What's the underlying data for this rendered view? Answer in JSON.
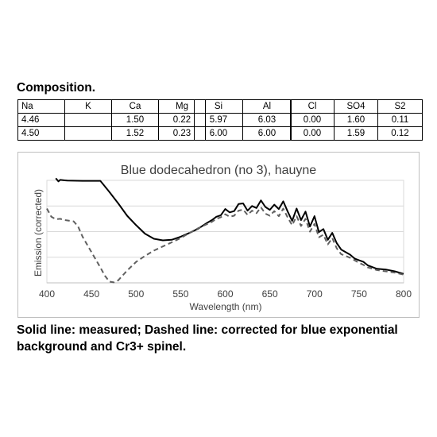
{
  "composition": {
    "heading": "Composition.",
    "groups": [
      {
        "headers": [
          "Na",
          "K",
          "Ca",
          "Mg"
        ],
        "rows": [
          [
            "4.46",
            "",
            "1.50",
            "0.22"
          ],
          [
            "4.50",
            "",
            "1.52",
            "0.23"
          ]
        ]
      },
      {
        "headers": [
          "Si",
          "Al"
        ],
        "rows": [
          [
            "5.97",
            "6.03"
          ],
          [
            "6.00",
            "6.00"
          ]
        ]
      },
      {
        "headers": [
          "Cl",
          "SO4",
          "S2"
        ],
        "rows": [
          [
            "0.00",
            "1.60",
            "0.11"
          ],
          [
            "0.00",
            "1.59",
            "0.12"
          ]
        ]
      }
    ]
  },
  "chart_data": {
    "type": "line",
    "title": "Blue dodecahedron (no 3), hauyne",
    "xlabel": "Wavelength (nm)",
    "ylabel": "Emission (corrected)",
    "xlim": [
      400,
      800
    ],
    "ylim": [
      0,
      4
    ],
    "xticks": [
      400,
      450,
      500,
      550,
      600,
      650,
      700,
      750,
      800
    ],
    "yticks": [
      0,
      1,
      2,
      3,
      4
    ],
    "grid": "horizontal",
    "y_tick_labels_shown": false,
    "series": [
      {
        "style": "solid",
        "color": "#000000",
        "points": [
          [
            410,
            4.08
          ],
          [
            413,
            3.96
          ],
          [
            415,
            4.02
          ],
          [
            420,
            4.0
          ],
          [
            423,
            3.99
          ],
          [
            440,
            3.98
          ],
          [
            455,
            3.98
          ],
          [
            460,
            3.98
          ],
          [
            470,
            3.55
          ],
          [
            480,
            3.1
          ],
          [
            490,
            2.62
          ],
          [
            500,
            2.25
          ],
          [
            510,
            1.92
          ],
          [
            520,
            1.72
          ],
          [
            530,
            1.66
          ],
          [
            540,
            1.68
          ],
          [
            550,
            1.8
          ],
          [
            560,
            1.95
          ],
          [
            570,
            2.12
          ],
          [
            580,
            2.35
          ],
          [
            585,
            2.45
          ],
          [
            590,
            2.58
          ],
          [
            595,
            2.64
          ],
          [
            600,
            2.88
          ],
          [
            605,
            2.75
          ],
          [
            610,
            2.8
          ],
          [
            615,
            3.08
          ],
          [
            620,
            3.1
          ],
          [
            625,
            2.82
          ],
          [
            630,
            3.0
          ],
          [
            635,
            2.92
          ],
          [
            640,
            3.22
          ],
          [
            645,
            2.96
          ],
          [
            650,
            2.85
          ],
          [
            655,
            3.05
          ],
          [
            660,
            2.88
          ],
          [
            665,
            3.18
          ],
          [
            670,
            2.78
          ],
          [
            675,
            2.42
          ],
          [
            680,
            2.9
          ],
          [
            685,
            2.45
          ],
          [
            690,
            2.78
          ],
          [
            695,
            2.2
          ],
          [
            700,
            2.6
          ],
          [
            705,
            1.98
          ],
          [
            710,
            2.1
          ],
          [
            715,
            1.68
          ],
          [
            720,
            1.95
          ],
          [
            725,
            1.55
          ],
          [
            730,
            1.3
          ],
          [
            740,
            1.1
          ],
          [
            745,
            0.95
          ],
          [
            750,
            0.88
          ],
          [
            755,
            0.82
          ],
          [
            760,
            0.68
          ],
          [
            770,
            0.55
          ],
          [
            780,
            0.52
          ],
          [
            790,
            0.45
          ],
          [
            800,
            0.35
          ]
        ]
      },
      {
        "style": "dashed",
        "color": "#606060",
        "points": [
          [
            400,
            2.9
          ],
          [
            405,
            2.58
          ],
          [
            410,
            2.48
          ],
          [
            415,
            2.5
          ],
          [
            420,
            2.45
          ],
          [
            430,
            2.4
          ],
          [
            435,
            2.2
          ],
          [
            440,
            1.8
          ],
          [
            450,
            1.2
          ],
          [
            460,
            0.6
          ],
          [
            465,
            0.28
          ],
          [
            470,
            0.05
          ],
          [
            475,
            0.02
          ],
          [
            480,
            0.1
          ],
          [
            490,
            0.48
          ],
          [
            500,
            0.82
          ],
          [
            510,
            1.05
          ],
          [
            520,
            1.26
          ],
          [
            530,
            1.42
          ],
          [
            540,
            1.58
          ],
          [
            550,
            1.75
          ],
          [
            560,
            1.95
          ],
          [
            570,
            2.14
          ],
          [
            580,
            2.3
          ],
          [
            585,
            2.38
          ],
          [
            590,
            2.5
          ],
          [
            595,
            2.56
          ],
          [
            600,
            2.68
          ],
          [
            605,
            2.58
          ],
          [
            610,
            2.62
          ],
          [
            615,
            2.82
          ],
          [
            620,
            2.86
          ],
          [
            625,
            2.65
          ],
          [
            630,
            2.82
          ],
          [
            635,
            2.72
          ],
          [
            640,
            2.95
          ],
          [
            645,
            2.7
          ],
          [
            650,
            2.62
          ],
          [
            655,
            2.8
          ],
          [
            660,
            2.6
          ],
          [
            665,
            2.9
          ],
          [
            670,
            2.55
          ],
          [
            675,
            2.25
          ],
          [
            680,
            2.6
          ],
          [
            685,
            2.22
          ],
          [
            690,
            2.5
          ],
          [
            695,
            2.0
          ],
          [
            700,
            2.3
          ],
          [
            705,
            1.78
          ],
          [
            710,
            1.88
          ],
          [
            715,
            1.5
          ],
          [
            720,
            1.75
          ],
          [
            725,
            1.35
          ],
          [
            730,
            1.12
          ],
          [
            740,
            0.98
          ],
          [
            745,
            0.88
          ],
          [
            750,
            0.78
          ],
          [
            755,
            0.7
          ],
          [
            760,
            0.6
          ],
          [
            770,
            0.5
          ],
          [
            780,
            0.45
          ],
          [
            790,
            0.4
          ],
          [
            800,
            0.32
          ]
        ]
      }
    ]
  },
  "caption": "Solid line: measured; Dashed line: corrected for blue exponential background and Cr3+ spinel."
}
